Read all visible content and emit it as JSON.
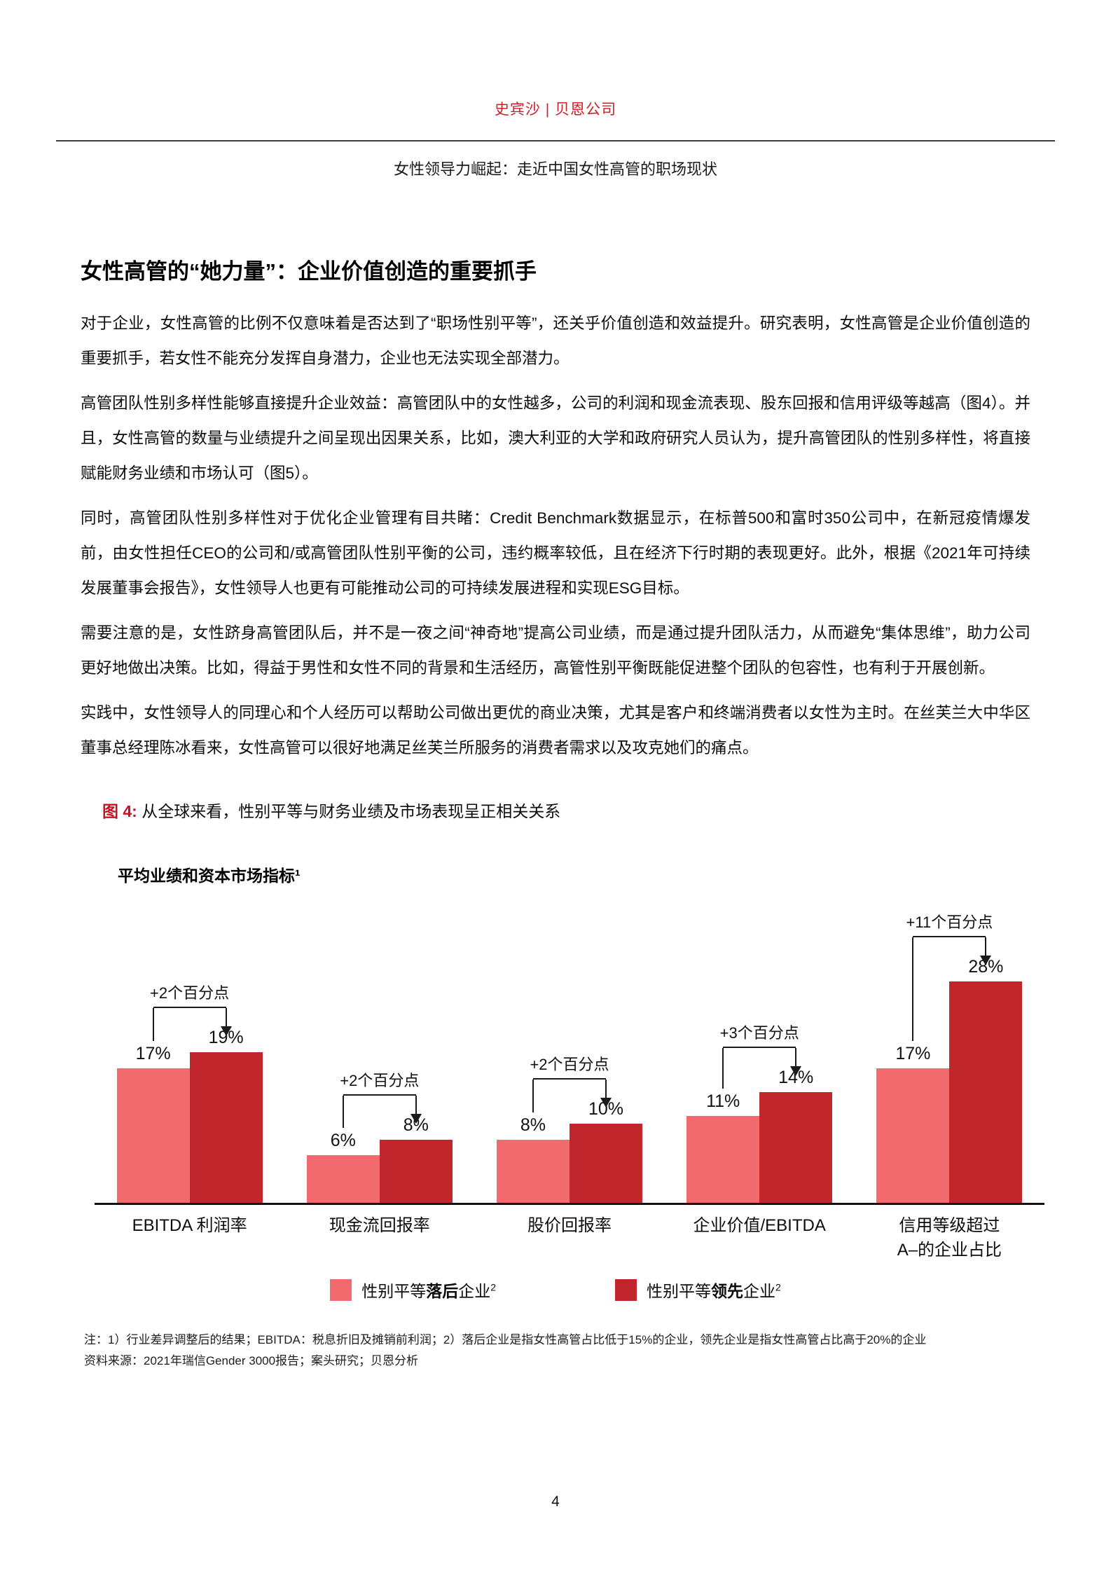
{
  "header": {
    "brand": "史宾沙 | 贝恩公司"
  },
  "doc": {
    "subtitle": "女性领导力崛起：走近中国女性高管的职场现状"
  },
  "section": {
    "heading": "女性高管的“她力量”：企业价值创造的重要抓手",
    "paragraphs": [
      "对于企业，女性高管的比例不仅意味着是否达到了“职场性别平等”，还关乎价值创造和效益提升。研究表明，女性高管是企业价值创造的重要抓手，若女性不能充分发挥自身潜力，企业也无法实现全部潜力。",
      "高管团队性别多样性能够直接提升企业效益：高管团队中的女性越多，公司的利润和现金流表现、股东回报和信用评级等越高（图4）。并且，女性高管的数量与业绩提升之间呈现出因果关系，比如，澳大利亚的大学和政府研究人员认为，提升高管团队的性别多样性，将直接赋能财务业绩和市场认可（图5）。",
      "同时，高管团队性别多样性对于优化企业管理有目共睹：Credit Benchmark数据显示，在标普500和富时350公司中，在新冠疫情爆发前，由女性担任CEO的公司和/或高管团队性别平衡的公司，违约概率较低，且在经济下行时期的表现更好。此外，根据《2021年可持续发展董事会报告》，女性领导人也更有可能推动公司的可持续发展进程和实现ESG目标。",
      "需要注意的是，女性跻身高管团队后，并不是一夜之间“神奇地”提高公司业绩，而是通过提升团队活力，从而避免“集体思维”，助力公司更好地做出决策。比如，得益于男性和女性不同的背景和生活经历，高管性别平衡既能促进整个团队的包容性，也有利于开展创新。",
      "实践中，女性领导人的同理心和个人经历可以帮助公司做出更优的商业决策，尤其是客户和终端消费者以女性为主时。在丝芙兰大中华区董事总经理陈冰看来，女性高管可以很好地满足丝芙兰所服务的消费者需求以及攻克她们的痛点。"
    ]
  },
  "figure": {
    "label": "图 4:",
    "caption": "从全球来看，性别平等与财务业绩及市场表现呈正相关关系",
    "chart_title": "平均业绩和资本市场指标¹"
  },
  "chart_data": {
    "type": "bar",
    "title": "平均业绩和资本市场指标¹",
    "categories": [
      "EBITDA 利润率",
      "现金流回报率",
      "股价回报率",
      "企业价值/EBITDA",
      "信用等级超过A–的企业占比"
    ],
    "category_lines": [
      [
        "EBITDA 利润率"
      ],
      [
        "现金流回报率"
      ],
      [
        "股价回报率"
      ],
      [
        "企业价值/EBITDA"
      ],
      [
        "信用等级超过",
        "A–的企业占比"
      ]
    ],
    "series": [
      {
        "name": "性别平等落后企业",
        "color": "#f2696e",
        "values": [
          17,
          6,
          8,
          11,
          17
        ]
      },
      {
        "name": "性别平等领先企业",
        "color": "#c1262d",
        "values": [
          19,
          8,
          10,
          14,
          28
        ]
      }
    ],
    "value_suffix": "%",
    "value_labels": [
      [
        "17%",
        "6%",
        "8%",
        "11%",
        "17%"
      ],
      [
        "19%",
        "8%",
        "10%",
        "14%",
        "28%"
      ]
    ],
    "deltas": [
      "+2个百分点",
      "+2个百分点",
      "+2个百分点",
      "+3个百分点",
      "+11个百分点"
    ],
    "ylim": [
      0,
      30
    ],
    "grid": false,
    "legend_position": "bottom"
  },
  "legend": {
    "items": [
      {
        "pre": "性别平等",
        "bold": "落后",
        "post": "企业",
        "sup": "2",
        "color": "#f2696e"
      },
      {
        "pre": "性别平等",
        "bold": "领先",
        "post": "企业",
        "sup": "2",
        "color": "#c1262d"
      }
    ]
  },
  "notes": {
    "line1": "注：1）行业差异调整后的结果；EBITDA：税息折旧及摊销前利润；2）落后企业是指女性高管占比低于15%的企业，领先企业是指女性高管占比高于20%的企业",
    "line2": "资料来源：2021年瑞信Gender 3000报告；案头研究；贝恩分析"
  },
  "footer": {
    "page_number": "4"
  }
}
